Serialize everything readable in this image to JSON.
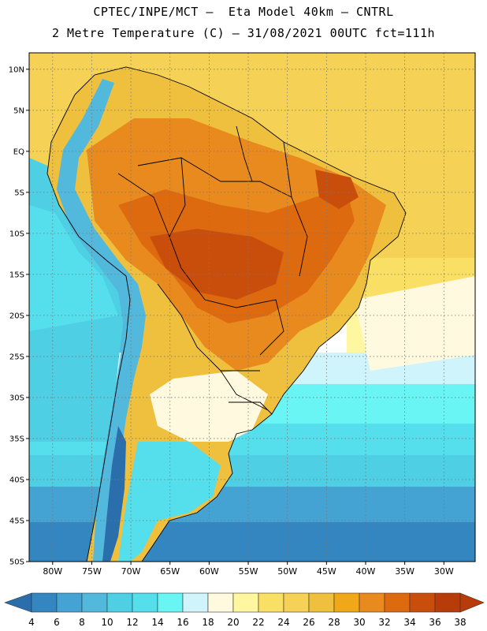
{
  "header": {
    "title_line1": "CPTEC/INPE/MCT –  Eta Model 40km – CNTRL",
    "title_line2": "2 Metre Temperature (C) – 31/08/2021 00UTC fct=111h"
  },
  "map": {
    "lat_labels": [
      "10N",
      "5N",
      "EQ",
      "5S",
      "10S",
      "15S",
      "20S",
      "25S",
      "30S",
      "35S",
      "40S",
      "45S",
      "50S"
    ],
    "lon_labels": [
      "80W",
      "75W",
      "70W",
      "65W",
      "60W",
      "55W",
      "50W",
      "45W",
      "40W",
      "35W",
      "30W"
    ],
    "ocean_color": "#f5d255",
    "land_hot_color": "#e0801e",
    "core_color": "#c85a10",
    "cold_color": "#3a86c0"
  },
  "colorbar": {
    "values": [
      "4",
      "6",
      "8",
      "10",
      "12",
      "14",
      "16",
      "18",
      "20",
      "22",
      "24",
      "26",
      "28",
      "30",
      "32",
      "34",
      "36",
      "38"
    ],
    "colors": [
      "#2a6fac",
      "#3486c0",
      "#45a3d3",
      "#52b8dc",
      "#4ecfe3",
      "#55dfec",
      "#6af5f5",
      "#d0f4fb",
      "#fff9e0",
      "#fff7a0",
      "#f9e065",
      "#f5d255",
      "#eec03e",
      "#f0a818",
      "#e88a1e",
      "#de6a10",
      "#c94e0c",
      "#b83b0a"
    ]
  }
}
